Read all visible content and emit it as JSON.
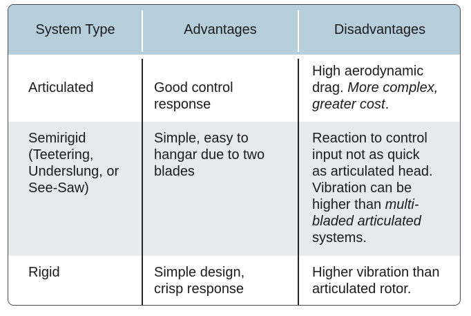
{
  "headers": {
    "system_type": "System Type",
    "advantages": "Advantages",
    "disadvantages": "Disadvantages"
  },
  "rows": [
    {
      "system_type": [
        "Articulated"
      ],
      "advantages": [
        "Good control",
        "response"
      ],
      "disadvantages_plain_1": "High aerodynamic",
      "disadvantages_plain_2": "drag. ",
      "disadvantages_italic_1": "More complex,",
      "disadvantages_italic_2": "greater cost",
      "disadvantages_plain_3": "."
    },
    {
      "system_type": [
        "Semirigid",
        "(Teetering,",
        "Underslung, or",
        "See-Saw)"
      ],
      "advantages": [
        "Simple, easy to",
        "hangar due to two",
        "blades"
      ],
      "disadvantages_plain_1": "Reaction to control",
      "disadvantages_plain_2": "input not as quick",
      "disadvantages_plain_3": "as articulated head.",
      "disadvantages_plain_4": "Vibration can be",
      "disadvantages_plain_5": "higher than ",
      "disadvantages_italic_1": "multi-",
      "disadvantages_italic_2": "bladed articulated",
      "disadvantages_plain_6": "systems."
    },
    {
      "system_type": [
        "Rigid"
      ],
      "advantages": [
        "Simple design,",
        "crisp response"
      ],
      "disadvantages": [
        "Higher vibration than",
        "articulated rotor."
      ]
    }
  ]
}
